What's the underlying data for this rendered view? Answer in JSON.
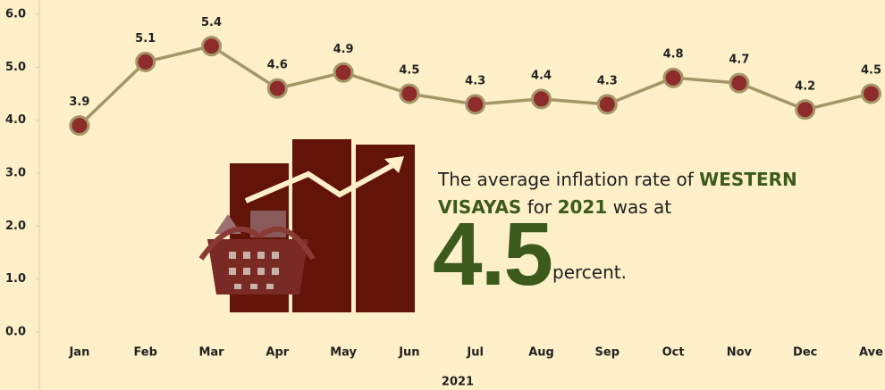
{
  "chart_data": {
    "type": "line",
    "categories": [
      "Jan",
      "Feb",
      "Mar",
      "Apr",
      "May",
      "Jun",
      "Jul",
      "Aug",
      "Sep",
      "Oct",
      "Nov",
      "Dec",
      "Ave"
    ],
    "values": [
      3.9,
      5.1,
      5.4,
      4.6,
      4.9,
      4.5,
      4.3,
      4.4,
      4.3,
      4.8,
      4.7,
      4.2,
      4.5
    ],
    "value_labels": [
      "3.9",
      "5.1",
      "5.4",
      "4.6",
      "4.9",
      "4.5",
      "4.3",
      "4.4",
      "4.3",
      "4.8",
      "4.7",
      "4.2",
      "4.5"
    ],
    "x_label": "2021",
    "line_color": "#a59668",
    "marker_color": "#8e2b2b",
    "ylim": [
      0,
      6
    ],
    "yticks": [
      {
        "value": 0,
        "label": "0.0"
      },
      {
        "value": 1,
        "label": "1.0"
      },
      {
        "value": 2,
        "label": "2.0"
      },
      {
        "value": 3,
        "label": "3.0"
      },
      {
        "value": 4,
        "label": "4.0"
      },
      {
        "value": 5,
        "label": "5.0"
      },
      {
        "value": 6,
        "label": "6.0"
      }
    ],
    "annotation": {
      "prefix": "The average inflation rate of",
      "region": "WESTERN VISAYAS",
      "mid": "for",
      "year": "2021",
      "suffix": "was at",
      "value": "4.5",
      "unit": "percent."
    }
  }
}
